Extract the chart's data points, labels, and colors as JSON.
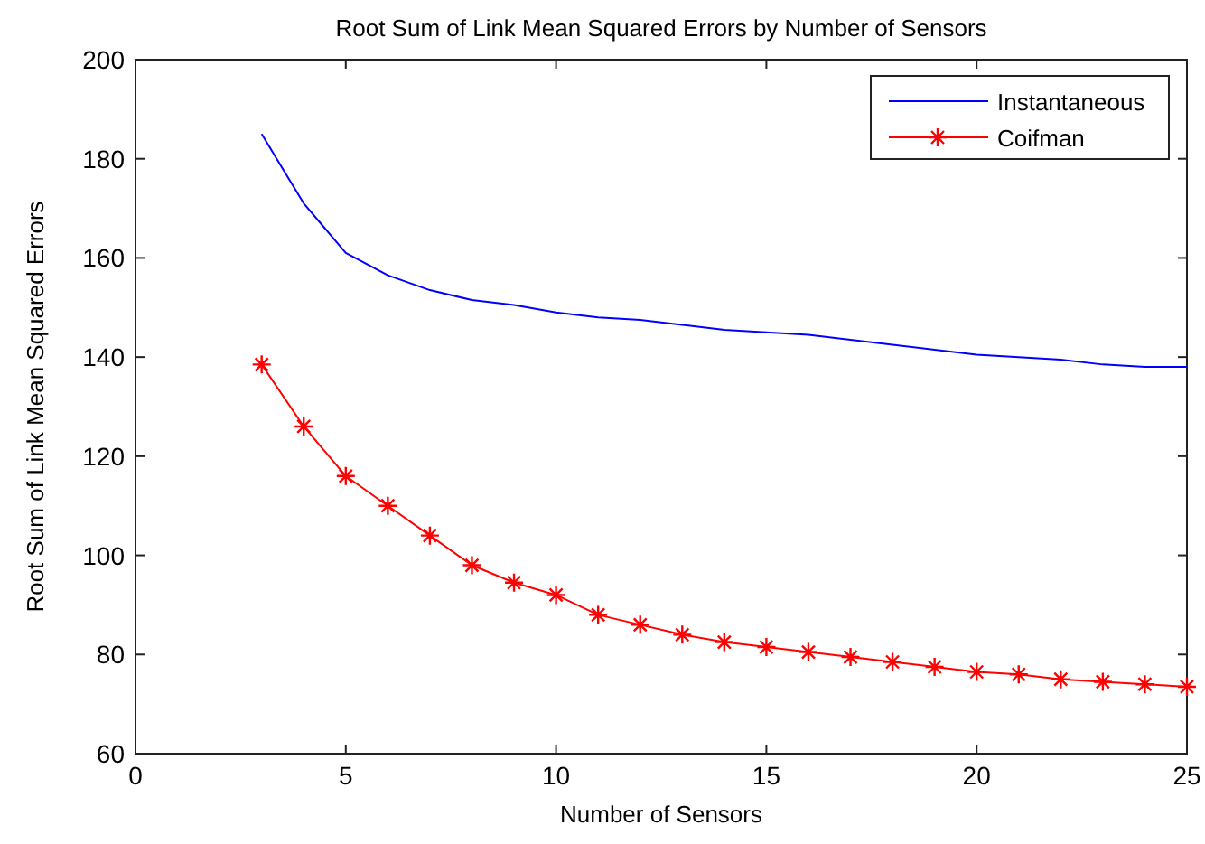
{
  "chart_data": {
    "type": "line",
    "title": "Root Sum of Link Mean Squared Errors by Number of Sensors",
    "xlabel": "Number of Sensors",
    "ylabel": "Root Sum of Link Mean Squared Errors",
    "xlim": [
      0,
      25
    ],
    "xticks": [
      0,
      5,
      10,
      15,
      20,
      25
    ],
    "ylim": [
      60,
      200
    ],
    "yticks": [
      60,
      80,
      100,
      120,
      140,
      160,
      180,
      200
    ],
    "legend": "top right",
    "series": [
      {
        "name": "Instantaneous",
        "color": "#0000ff",
        "marker": "none",
        "x": [
          3,
          3.5,
          4,
          4.5,
          5,
          6,
          7,
          8,
          9,
          10,
          11,
          12,
          13,
          14,
          15,
          16,
          17,
          18,
          19,
          20,
          21,
          22,
          23,
          24,
          25
        ],
        "values": [
          185,
          178,
          171,
          166,
          161,
          156.5,
          153.5,
          151.5,
          150.5,
          149,
          148,
          147.5,
          146.5,
          145.5,
          145,
          144.5,
          143.5,
          142.5,
          141.5,
          140.5,
          140,
          139.5,
          138.5,
          138,
          138
        ]
      },
      {
        "name": "Coifman",
        "color": "#ff0000",
        "marker": "cross",
        "x": [
          3,
          4,
          5,
          6,
          7,
          8,
          9,
          10,
          11,
          12,
          13,
          14,
          15,
          16,
          17,
          18,
          19,
          20,
          21,
          22,
          23,
          24,
          25
        ],
        "values": [
          138.5,
          126,
          116,
          110,
          104,
          98,
          94.5,
          92,
          88,
          86,
          84,
          82.5,
          81.5,
          80.5,
          79.5,
          78.5,
          77.5,
          76.5,
          76,
          75,
          74.5,
          74,
          73.5
        ]
      }
    ]
  }
}
